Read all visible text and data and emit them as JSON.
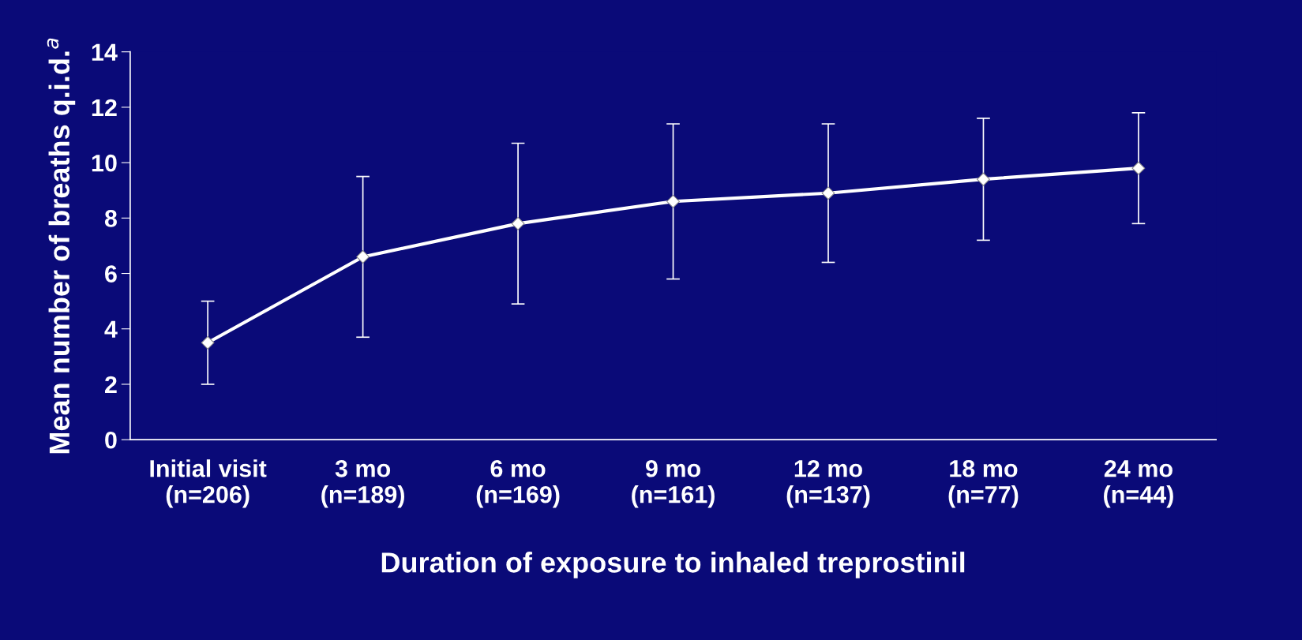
{
  "chart_data": {
    "type": "line",
    "xlabel": "Duration of exposure to inhaled treprostinil",
    "ylabel": "Mean number of breaths q.i.d.$^{a}$",
    "categories": [
      "Initial visit\n(n=206)",
      "3 mo\n(n=189)",
      "6 mo\n(n=169)",
      "9 mo\n(n=161)",
      "12 mo\n(n=137)",
      "18 mo\n(n=77)",
      "24 mo\n(n=44)"
    ],
    "series": [
      {
        "color": "#ffffff",
        "values": [
          3.5,
          6.6,
          7.8,
          8.6,
          8.9,
          9.4,
          9.8
        ],
        "errors": [
          [
            2.0,
            5.0
          ],
          [
            3.7,
            9.5
          ],
          [
            4.9,
            10.7
          ],
          [
            5.8,
            11.4
          ],
          [
            6.4,
            11.4
          ],
          [
            7.2,
            11.6
          ],
          [
            7.8,
            11.8
          ]
        ]
      }
    ],
    "ylim": [
      0,
      14
    ],
    "yticks": [
      0,
      2,
      4,
      6,
      8,
      10,
      12,
      14
    ],
    "grid": false,
    "legend": false,
    "marker": "diamond",
    "line_style": "solid"
  }
}
